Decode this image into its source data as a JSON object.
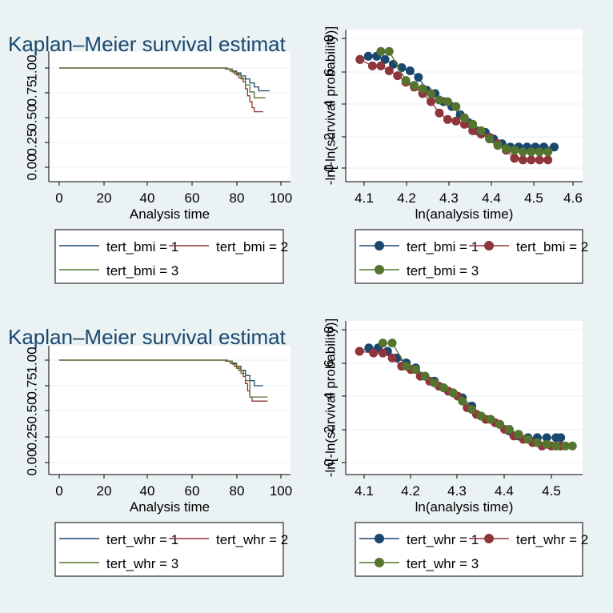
{
  "colors": {
    "background": "#eaf2f3",
    "plot_area": "#ffffff",
    "grid": "#eaf2f3",
    "series_1": "#1a476f",
    "series_2": "#90353b",
    "series_3": "#55752f",
    "title_color": "#1a476f"
  },
  "chart_data": [
    {
      "id": "km-bmi",
      "type": "line",
      "title": "Kaplan–Meier survival estimat",
      "xlabel": "Analysis time",
      "ylabel": "",
      "xlim": [
        0,
        100
      ],
      "ylim": [
        0,
        1
      ],
      "xticks": [
        "0",
        "20",
        "40",
        "60",
        "80",
        "100"
      ],
      "yticks": [
        "0.00",
        "0.25",
        "0.50",
        "0.75",
        "1.00"
      ],
      "grid": true,
      "legend": "bottom",
      "series": [
        {
          "name": "tert_bmi = 1",
          "color": "#1a476f",
          "x": [
            0,
            72,
            76,
            78,
            80,
            82,
            84,
            86,
            88,
            90,
            95
          ],
          "y": [
            1,
            1,
            0.99,
            0.97,
            0.95,
            0.92,
            0.89,
            0.85,
            0.81,
            0.77,
            0.77
          ]
        },
        {
          "name": "tert_bmi = 2",
          "color": "#90353b",
          "x": [
            0,
            72,
            75,
            77,
            79,
            81,
            83,
            84,
            85,
            86,
            87,
            88,
            92
          ],
          "y": [
            1,
            1,
            0.99,
            0.97,
            0.94,
            0.9,
            0.86,
            0.79,
            0.72,
            0.66,
            0.6,
            0.56,
            0.56
          ]
        },
        {
          "name": "tert_bmi = 3",
          "color": "#55752f",
          "x": [
            0,
            72,
            76,
            78,
            80,
            82,
            84,
            86,
            88,
            93
          ],
          "y": [
            1,
            1,
            0.99,
            0.96,
            0.93,
            0.89,
            0.83,
            0.76,
            0.7,
            0.7
          ]
        }
      ]
    },
    {
      "id": "loglog-bmi",
      "type": "scatter",
      "title": "",
      "xlabel": "ln(analysis time)",
      "ylabel": "-ln[-ln(survival probability)]",
      "xlim": [
        4.07,
        4.63
      ],
      "ylim": [
        -1,
        7
      ],
      "xticks": [
        "4.1",
        "4.2",
        "4.3",
        "4.4",
        "4.5",
        "4.6"
      ],
      "yticks": [
        "0",
        "2",
        "4",
        "6",
        "8"
      ],
      "grid": true,
      "legend": "bottom",
      "series": [
        {
          "name": "tert_bmi = 1",
          "color": "#1a476f",
          "x": [
            4.09,
            4.11,
            4.13,
            4.15,
            4.17,
            4.19,
            4.21,
            4.23,
            4.25,
            4.27,
            4.29,
            4.31,
            4.33,
            4.35,
            4.37,
            4.39,
            4.41,
            4.43,
            4.45,
            4.47,
            4.49,
            4.51,
            4.53,
            4.555
          ],
          "y": [
            6.7,
            6.9,
            6.9,
            6.7,
            6.4,
            6.2,
            6.0,
            5.6,
            4.8,
            4.6,
            4.1,
            3.8,
            3.3,
            2.8,
            2.3,
            2.2,
            1.8,
            1.5,
            1.3,
            1.3,
            1.3,
            1.3,
            1.3,
            1.3
          ]
        },
        {
          "name": "tert_bmi = 2",
          "color": "#90353b",
          "x": [
            4.09,
            4.12,
            4.14,
            4.16,
            4.18,
            4.2,
            4.22,
            4.24,
            4.26,
            4.28,
            4.3,
            4.32,
            4.34,
            4.36,
            4.38,
            4.4,
            4.42,
            4.44,
            4.46,
            4.48,
            4.5,
            4.52,
            4.54
          ],
          "y": [
            6.7,
            6.3,
            6.3,
            6.0,
            5.7,
            5.3,
            5.0,
            4.6,
            4.1,
            3.4,
            3.0,
            2.9,
            2.7,
            2.3,
            2.1,
            1.9,
            1.5,
            1.1,
            0.6,
            0.5,
            0.5,
            0.5,
            0.5
          ]
        },
        {
          "name": "tert_bmi = 3",
          "color": "#55752f",
          "x": [
            4.14,
            4.16,
            4.2,
            4.22,
            4.24,
            4.26,
            4.28,
            4.3,
            4.32,
            4.34,
            4.36,
            4.38,
            4.4,
            4.42,
            4.44,
            4.46,
            4.48,
            4.5,
            4.52,
            4.54
          ],
          "y": [
            7.2,
            7.2,
            5.4,
            5.1,
            4.9,
            4.6,
            4.2,
            4.1,
            3.8,
            3.1,
            2.7,
            2.3,
            1.8,
            1.4,
            1.2,
            1.1,
            1.0,
            1.0,
            1.0,
            1.0
          ]
        }
      ]
    },
    {
      "id": "km-whr",
      "type": "line",
      "title": "Kaplan–Meier survival estimat",
      "xlabel": "Analysis time",
      "ylabel": "",
      "xlim": [
        0,
        100
      ],
      "ylim": [
        0,
        1
      ],
      "xticks": [
        "0",
        "20",
        "40",
        "60",
        "80",
        "100"
      ],
      "yticks": [
        "0.00",
        "0.25",
        "0.50",
        "0.75",
        "1.00"
      ],
      "grid": true,
      "legend": "bottom",
      "series": [
        {
          "name": "tert_whr = 1",
          "color": "#1a476f",
          "x": [
            0,
            72,
            76,
            78,
            80,
            82,
            84,
            86,
            88,
            92
          ],
          "y": [
            1,
            1,
            0.99,
            0.97,
            0.94,
            0.9,
            0.85,
            0.8,
            0.75,
            0.75
          ]
        },
        {
          "name": "tert_whr = 2",
          "color": "#90353b",
          "x": [
            0,
            72,
            75,
            77,
            79,
            81,
            83,
            84,
            85,
            86,
            87,
            94
          ],
          "y": [
            1,
            1,
            0.99,
            0.97,
            0.94,
            0.9,
            0.84,
            0.77,
            0.7,
            0.64,
            0.6,
            0.6
          ]
        },
        {
          "name": "tert_whr = 3",
          "color": "#55752f",
          "x": [
            0,
            72,
            76,
            78,
            80,
            82,
            84,
            86,
            94
          ],
          "y": [
            1,
            1,
            0.99,
            0.96,
            0.92,
            0.87,
            0.8,
            0.64,
            0.64
          ]
        }
      ]
    },
    {
      "id": "loglog-whr",
      "type": "scatter",
      "title": "",
      "xlabel": "ln(analysis time)",
      "ylabel": "-ln[-ln(survival probability)]",
      "xlim": [
        4.07,
        4.56
      ],
      "ylim": [
        -1,
        7
      ],
      "xticks": [
        "4.1",
        "4.2",
        "4.3",
        "4.4",
        "4.5"
      ],
      "yticks": [
        "0",
        "2",
        "4",
        "6",
        "8"
      ],
      "grid": true,
      "legend": "bottom",
      "series": [
        {
          "name": "tert_whr = 1",
          "color": "#1a476f",
          "x": [
            4.09,
            4.11,
            4.13,
            4.15,
            4.17,
            4.19,
            4.21,
            4.23,
            4.25,
            4.27,
            4.29,
            4.31,
            4.33,
            4.35,
            4.37,
            4.39,
            4.41,
            4.43,
            4.45,
            4.47,
            4.49,
            4.51,
            4.52
          ],
          "y": [
            6.7,
            6.9,
            6.9,
            6.7,
            6.3,
            6.0,
            5.7,
            5.2,
            4.9,
            4.5,
            4.2,
            3.9,
            3.4,
            2.8,
            2.6,
            2.3,
            1.9,
            1.6,
            1.5,
            1.5,
            1.5,
            1.5,
            1.5
          ]
        },
        {
          "name": "tert_whr = 2",
          "color": "#90353b",
          "x": [
            4.09,
            4.12,
            4.14,
            4.16,
            4.18,
            4.2,
            4.22,
            4.24,
            4.26,
            4.28,
            4.3,
            4.32,
            4.34,
            4.36,
            4.38,
            4.4,
            4.42,
            4.44,
            4.46,
            4.48,
            4.5,
            4.52
          ],
          "y": [
            6.7,
            6.6,
            6.6,
            6.3,
            5.8,
            5.6,
            5.2,
            4.9,
            4.6,
            4.3,
            4.0,
            3.3,
            2.9,
            2.6,
            2.4,
            2.0,
            1.6,
            1.4,
            1.2,
            1.0,
            1.0,
            1.0
          ]
        },
        {
          "name": "tert_whr = 3",
          "color": "#55752f",
          "x": [
            4.14,
            4.16,
            4.19,
            4.21,
            4.23,
            4.25,
            4.27,
            4.29,
            4.31,
            4.33,
            4.35,
            4.37,
            4.39,
            4.41,
            4.43,
            4.45,
            4.47,
            4.49,
            4.51,
            4.53,
            4.545
          ],
          "y": [
            7.2,
            7.2,
            5.8,
            5.6,
            5.2,
            4.8,
            4.5,
            4.2,
            3.7,
            3.2,
            2.8,
            2.6,
            2.3,
            2.0,
            1.7,
            1.4,
            1.2,
            1.1,
            1.0,
            1.0,
            1.0
          ]
        }
      ]
    }
  ]
}
